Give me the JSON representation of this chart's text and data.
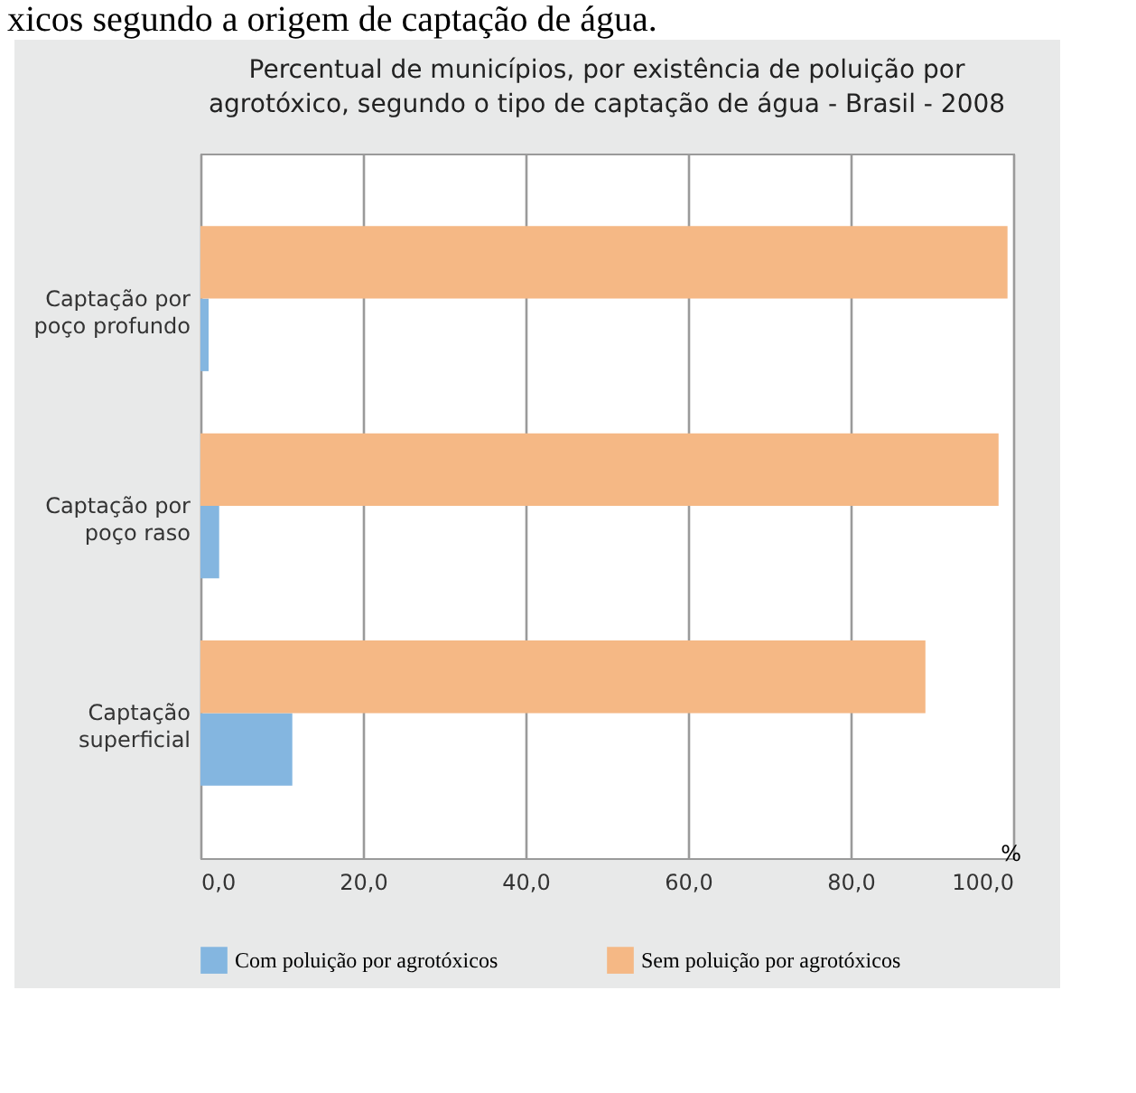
{
  "chart_data": {
    "type": "bar",
    "orientation": "horizontal",
    "title": "Percentual de municípios, por existência de poluição por\nagrotóxico, segundo o tipo de captação de água - Brasil - 2008",
    "annotations": [
      "xicos segundo a origem de captação de água."
    ],
    "categories": [
      "Captação por\npoço profundo",
      "Captação por\npoço raso",
      "Captação\nsuperficial"
    ],
    "series": [
      {
        "name": "Com poluição por agrotóxicos",
        "color": "#84b6e0",
        "values": [
          1.0,
          2.3,
          11.3
        ]
      },
      {
        "name": "Sem poluição por agrotóxicos",
        "color": "#f5b885",
        "values": [
          99.3,
          98.2,
          89.2
        ]
      }
    ],
    "xlabel": "%",
    "xlim": [
      0,
      100
    ],
    "xticks": [
      {
        "value": 0,
        "label": "0,0"
      },
      {
        "value": 20,
        "label": "20,0"
      },
      {
        "value": 40,
        "label": "40,0"
      },
      {
        "value": 60,
        "label": "60,0"
      },
      {
        "value": 80,
        "label": "80,0"
      },
      {
        "value": 100,
        "label": "100,0"
      }
    ],
    "grid": "x",
    "legend": "bottom"
  }
}
